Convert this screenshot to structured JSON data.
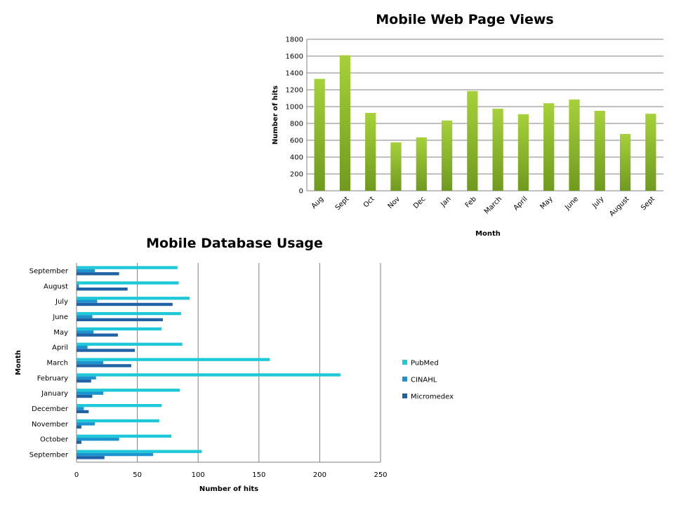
{
  "chart_data": [
    {
      "type": "bar",
      "title": "Mobile Web Page Views",
      "xlabel": "Month",
      "ylabel": "Number of hits",
      "ylim": [
        0,
        1800
      ],
      "yticks": [
        0,
        200,
        400,
        600,
        800,
        1000,
        1200,
        1400,
        1600,
        1800
      ],
      "grid": true,
      "categories": [
        "Aug",
        "Sept",
        "Oct",
        "Nov",
        "Dec",
        "Jan",
        "Feb",
        "March",
        "April",
        "May",
        "June",
        "July",
        "August",
        "Sept"
      ],
      "values": [
        1330,
        1610,
        925,
        575,
        635,
        835,
        1185,
        975,
        910,
        1040,
        1085,
        950,
        675,
        915
      ],
      "colors": {
        "bar_top": "#a6d13a",
        "bar_bottom": "#6f9a1e",
        "grid": "#808080"
      }
    },
    {
      "type": "bar",
      "orientation": "horizontal",
      "title": "Mobile Database Usage",
      "xlabel": "Number of hits",
      "ylabel": "Month",
      "xlim": [
        0,
        250
      ],
      "xticks": [
        0,
        50,
        100,
        150,
        200,
        250
      ],
      "grid": true,
      "legend_position": "right",
      "categories": [
        "September",
        "October",
        "November",
        "December",
        "January",
        "February",
        "March",
        "April",
        "May",
        "June",
        "July",
        "August",
        "September"
      ],
      "series": [
        {
          "name": "PubMed",
          "color": "#1fc8d8",
          "values": [
            103,
            78,
            68,
            70,
            85,
            217,
            159,
            87,
            70,
            86,
            93,
            84,
            83
          ]
        },
        {
          "name": "CINAHL",
          "color": "#1b93cf",
          "values": [
            63,
            35,
            15,
            6,
            22,
            16,
            22,
            9,
            14,
            13,
            17,
            2,
            15
          ]
        },
        {
          "name": "Micromedex",
          "color": "#1f63a6",
          "values": [
            23,
            4,
            4,
            10,
            13,
            12,
            45,
            48,
            34,
            71,
            79,
            42,
            35
          ]
        }
      ]
    }
  ]
}
